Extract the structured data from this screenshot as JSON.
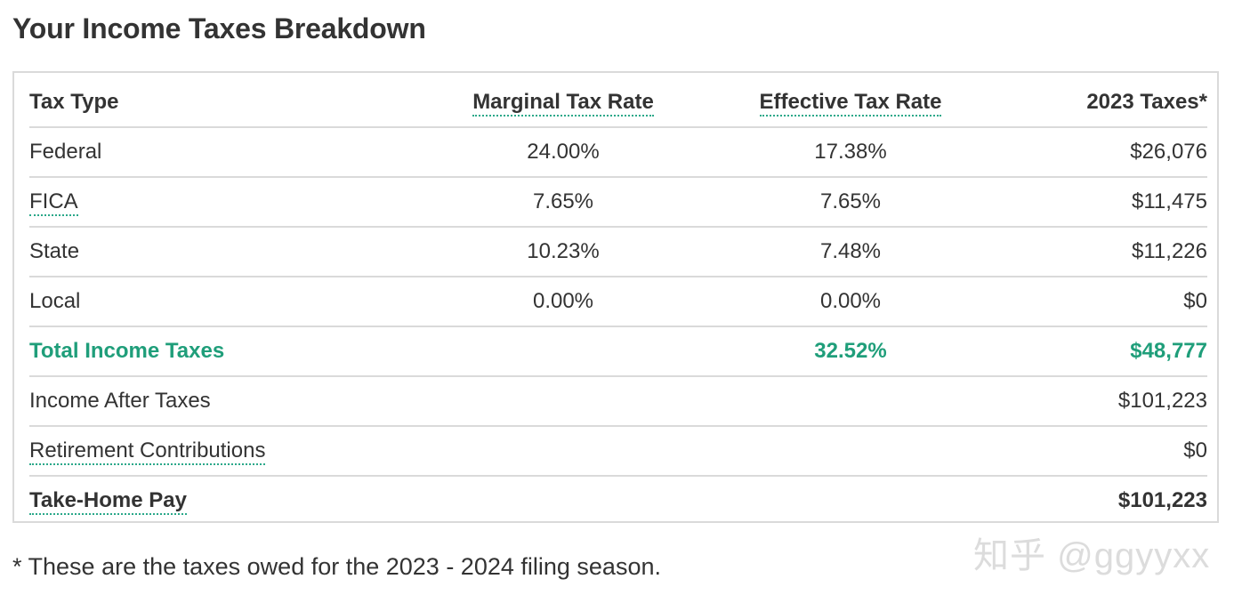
{
  "title": "Your Income Taxes Breakdown",
  "colors": {
    "accent_green": "#1f9e7a",
    "dotted_underline": "#2aa889",
    "border": "#dadada",
    "text": "#333333"
  },
  "table": {
    "headers": {
      "tax_type": "Tax Type",
      "marginal": "Marginal Tax Rate",
      "effective": "Effective Tax Rate",
      "taxes": "2023 Taxes*"
    },
    "rows": [
      {
        "label": "Federal",
        "marginal": "24.00%",
        "effective": "17.38%",
        "amount": "$26,076"
      },
      {
        "label": "FICA",
        "marginal": "7.65%",
        "effective": "7.65%",
        "amount": "$11,475"
      },
      {
        "label": "State",
        "marginal": "10.23%",
        "effective": "7.48%",
        "amount": "$11,226"
      },
      {
        "label": "Local",
        "marginal": "0.00%",
        "effective": "0.00%",
        "amount": "$0"
      }
    ],
    "total": {
      "label": "Total Income Taxes",
      "effective": "32.52%",
      "amount": "$48,777"
    },
    "after_taxes": {
      "label": "Income After Taxes",
      "amount": "$101,223"
    },
    "retirement": {
      "label": "Retirement Contributions",
      "amount": "$0"
    },
    "take_home": {
      "label": "Take-Home Pay",
      "amount": "$101,223"
    }
  },
  "footnote": "* These are the taxes owed for the 2023 - 2024 filing season.",
  "watermark": "知乎 @ggyyxx"
}
